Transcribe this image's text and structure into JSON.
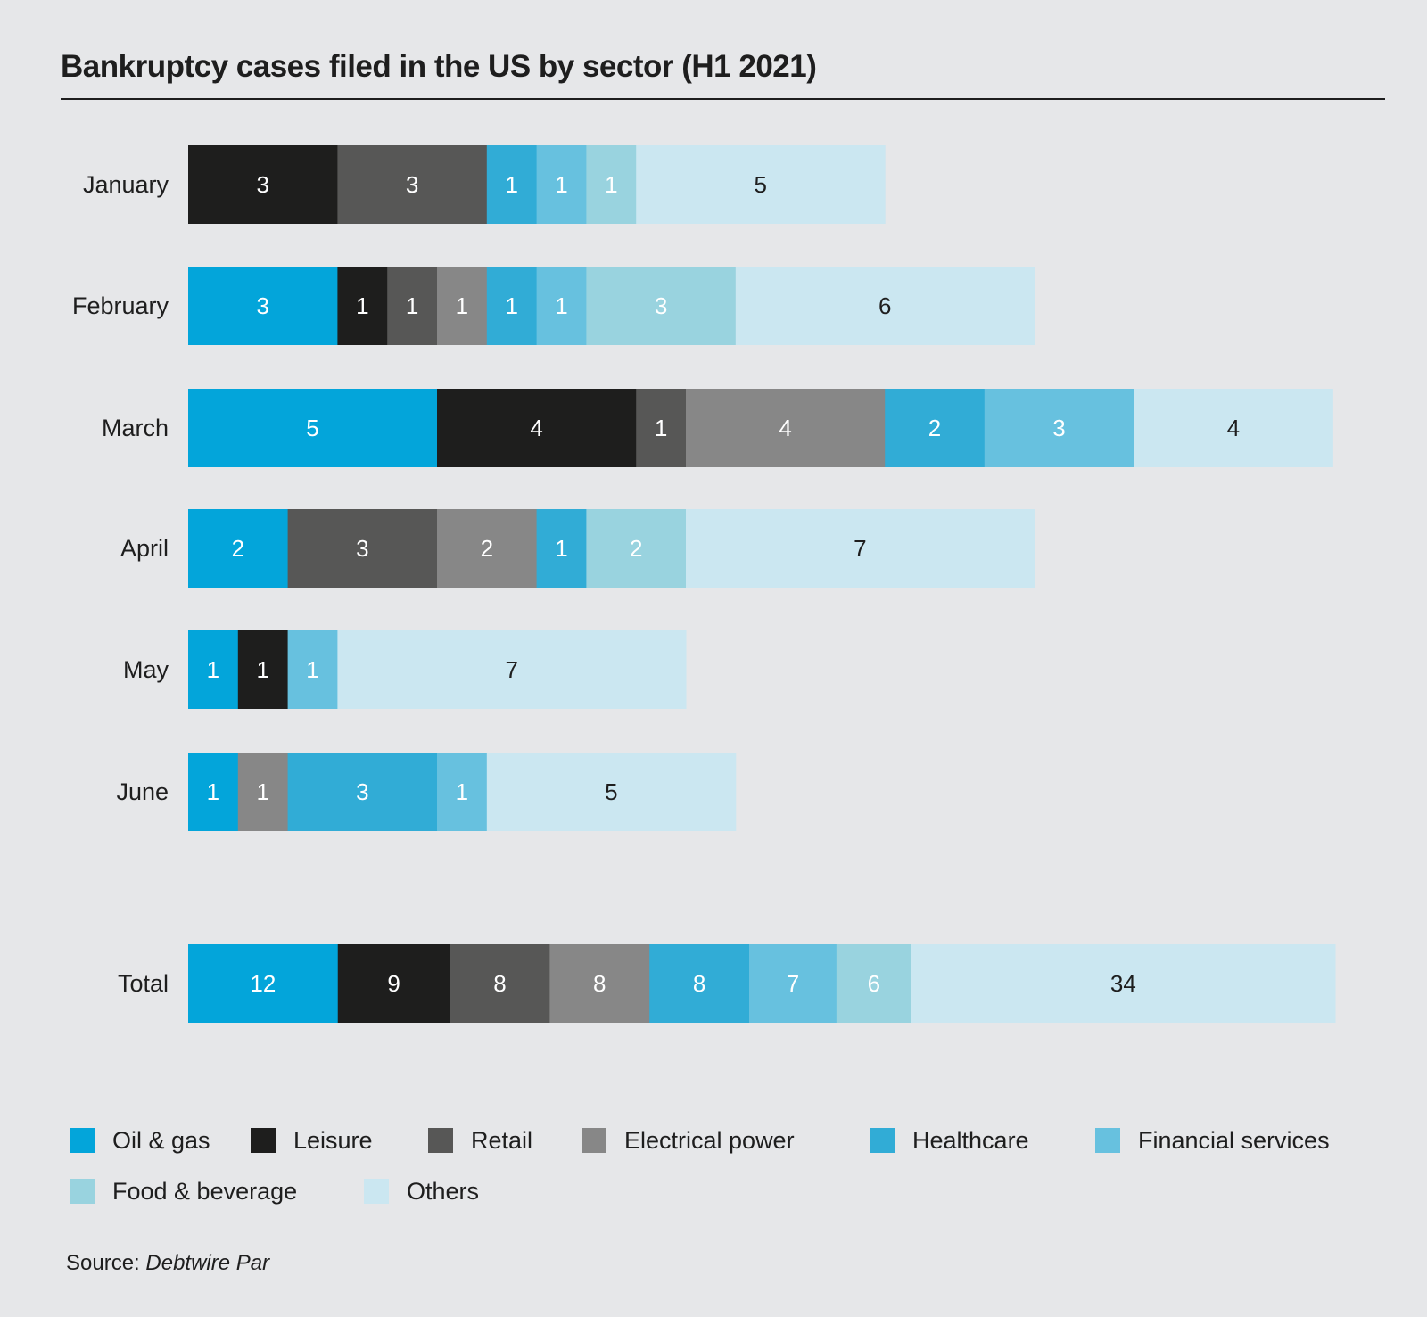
{
  "chart_data": {
    "type": "bar",
    "orientation": "horizontal",
    "stacked": true,
    "title": "Bankruptcy cases filed in the US by sector (H1 2021)",
    "source_label": "Source:",
    "source_name": "Debtwire Par",
    "categories": [
      "January",
      "February",
      "March",
      "April",
      "May",
      "June"
    ],
    "total_label": "Total",
    "series": [
      {
        "name": "Oil & gas",
        "color": "#03a5da",
        "text_color": "#ffffff",
        "values": [
          0,
          3,
          5,
          2,
          1,
          1
        ],
        "total": 12
      },
      {
        "name": "Leisure",
        "color": "#1e1e1d",
        "text_color": "#ffffff",
        "values": [
          3,
          1,
          4,
          0,
          1,
          0
        ],
        "total": 9
      },
      {
        "name": "Retail",
        "color": "#575756",
        "text_color": "#ffffff",
        "values": [
          3,
          1,
          1,
          3,
          0,
          0
        ],
        "total": 8
      },
      {
        "name": "Electrical power",
        "color": "#878787",
        "text_color": "#ffffff",
        "values": [
          0,
          1,
          4,
          2,
          0,
          1
        ],
        "total": 8
      },
      {
        "name": "Healthcare",
        "color": "#31acd6",
        "text_color": "#ffffff",
        "values": [
          1,
          1,
          2,
          1,
          0,
          3
        ],
        "total": 8
      },
      {
        "name": "Financial services",
        "color": "#67c1df",
        "text_color": "#ffffff",
        "values": [
          1,
          1,
          3,
          0,
          1,
          1
        ],
        "total": 7
      },
      {
        "name": "Food & beverage",
        "color": "#99d3df",
        "text_color": "#ffffff",
        "values": [
          1,
          3,
          0,
          2,
          0,
          0
        ],
        "total": 6
      },
      {
        "name": "Others",
        "color": "#cbe7f1",
        "text_color": "#1e1e1e",
        "values": [
          5,
          6,
          4,
          7,
          7,
          5
        ],
        "total": 34
      }
    ],
    "legend_position": "bottom",
    "grid": false
  }
}
